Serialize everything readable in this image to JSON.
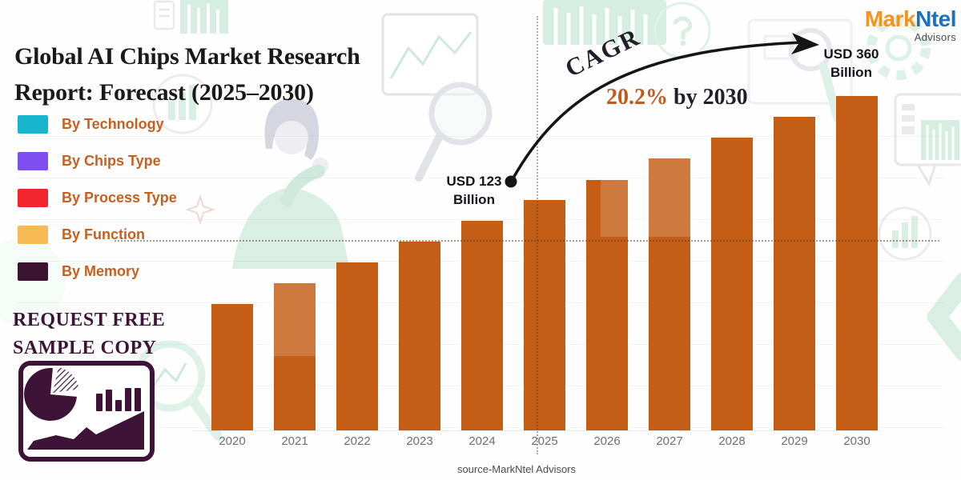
{
  "colors": {
    "title": "#1c1719",
    "accent_text": "#c65f1f",
    "cta": "#3d1438",
    "dark_text": "#241e2a",
    "cagr_value": "#c05a1e",
    "usd_label": "#16121d",
    "year_label": "#6f6f6f",
    "source": "#4a4a4a",
    "logo_orange": "#f6921e",
    "logo_blue": "#1d71b8"
  },
  "brand": {
    "name_part1": "Mark",
    "name_part2": "Ntel",
    "subtitle": "Advisors"
  },
  "header": {
    "title_line1": "Global AI Chips Market Research",
    "title_line2": "Report: Forecast (2025–2030)"
  },
  "legend": {
    "items": [
      {
        "label": "By Technology",
        "color": "#18b6ce"
      },
      {
        "label": "By Chips Type",
        "color": "#7e4ef2"
      },
      {
        "label": "By Process Type",
        "color": "#f3262f"
      },
      {
        "label": "By Function",
        "color": "#f8ba55"
      },
      {
        "label": "By Memory",
        "color": "#3a1430"
      }
    ]
  },
  "cta": {
    "line1": "REQUEST FREE",
    "line2": "SAMPLE COPY"
  },
  "annotations": {
    "cagr_label": "CAGR",
    "cagr_value": "20.2%",
    "cagr_suffix": " by 2030",
    "start_line1": "USD 123",
    "start_line2": "Billion",
    "end_line1": "USD 360",
    "end_line2": "Billion"
  },
  "footer": {
    "source": "source-MarkNtel Advisors"
  },
  "chart_data": {
    "type": "bar",
    "title": "Global AI Chips Market Research Report: Forecast (2025–2030)",
    "categories": [
      "2020",
      "2021",
      "2022",
      "2023",
      "2024",
      "2025",
      "2026",
      "2027",
      "2028",
      "2029",
      "2030"
    ],
    "values_relative": [
      0.378,
      0.44,
      0.502,
      0.565,
      0.627,
      0.689,
      0.749,
      0.813,
      0.876,
      0.938,
      1.0
    ],
    "labeled_points": [
      {
        "category": "2024",
        "value": 123,
        "unit": "USD Billion",
        "label": "USD 123 Billion"
      },
      {
        "category": "2030",
        "value": 360,
        "unit": "USD Billion",
        "label": "USD 360 Billion"
      }
    ],
    "cagr_percent": 20.2,
    "cagr_period_end": "2030",
    "unit": "USD Billion",
    "bar_color": "#c45e17",
    "xlabel": "",
    "ylabel": "",
    "y_axis": "none (stylized infographic, only 2024 and 2030 values labeled)",
    "forecast_divider_at": "2025",
    "grid": "faint horizontal gridlines, dotted level line and dotted forecast divider",
    "legend_position": "upper-left"
  }
}
